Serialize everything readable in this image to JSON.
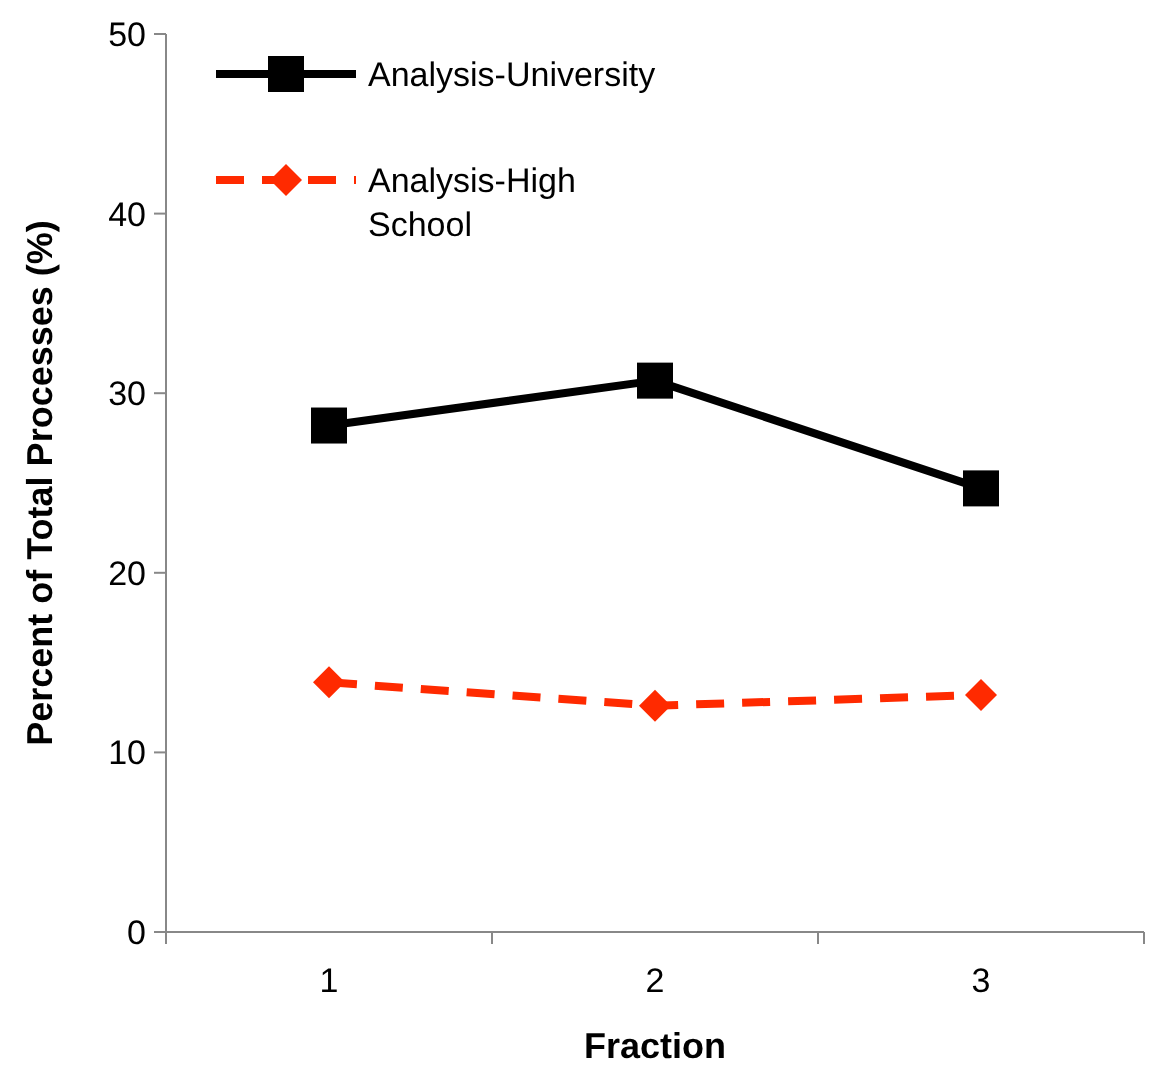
{
  "chart_data": {
    "type": "line",
    "xlabel": "Fraction",
    "ylabel": "Percent of Total Processes (%)",
    "categories": [
      "1",
      "2",
      "3"
    ],
    "series": [
      {
        "name": "Analysis-University",
        "color": "#000000",
        "values": [
          28.2,
          30.7,
          24.7
        ],
        "marker": "square",
        "line_style": "solid"
      },
      {
        "name": "Analysis-High School",
        "color": "#ff2a00",
        "values": [
          13.9,
          12.6,
          13.2
        ],
        "marker": "diamond",
        "line_style": "dashed"
      }
    ],
    "ylim": [
      0,
      50
    ],
    "yticks": [
      0,
      10,
      20,
      30,
      40,
      50
    ],
    "grid": false,
    "legend": "top left"
  }
}
